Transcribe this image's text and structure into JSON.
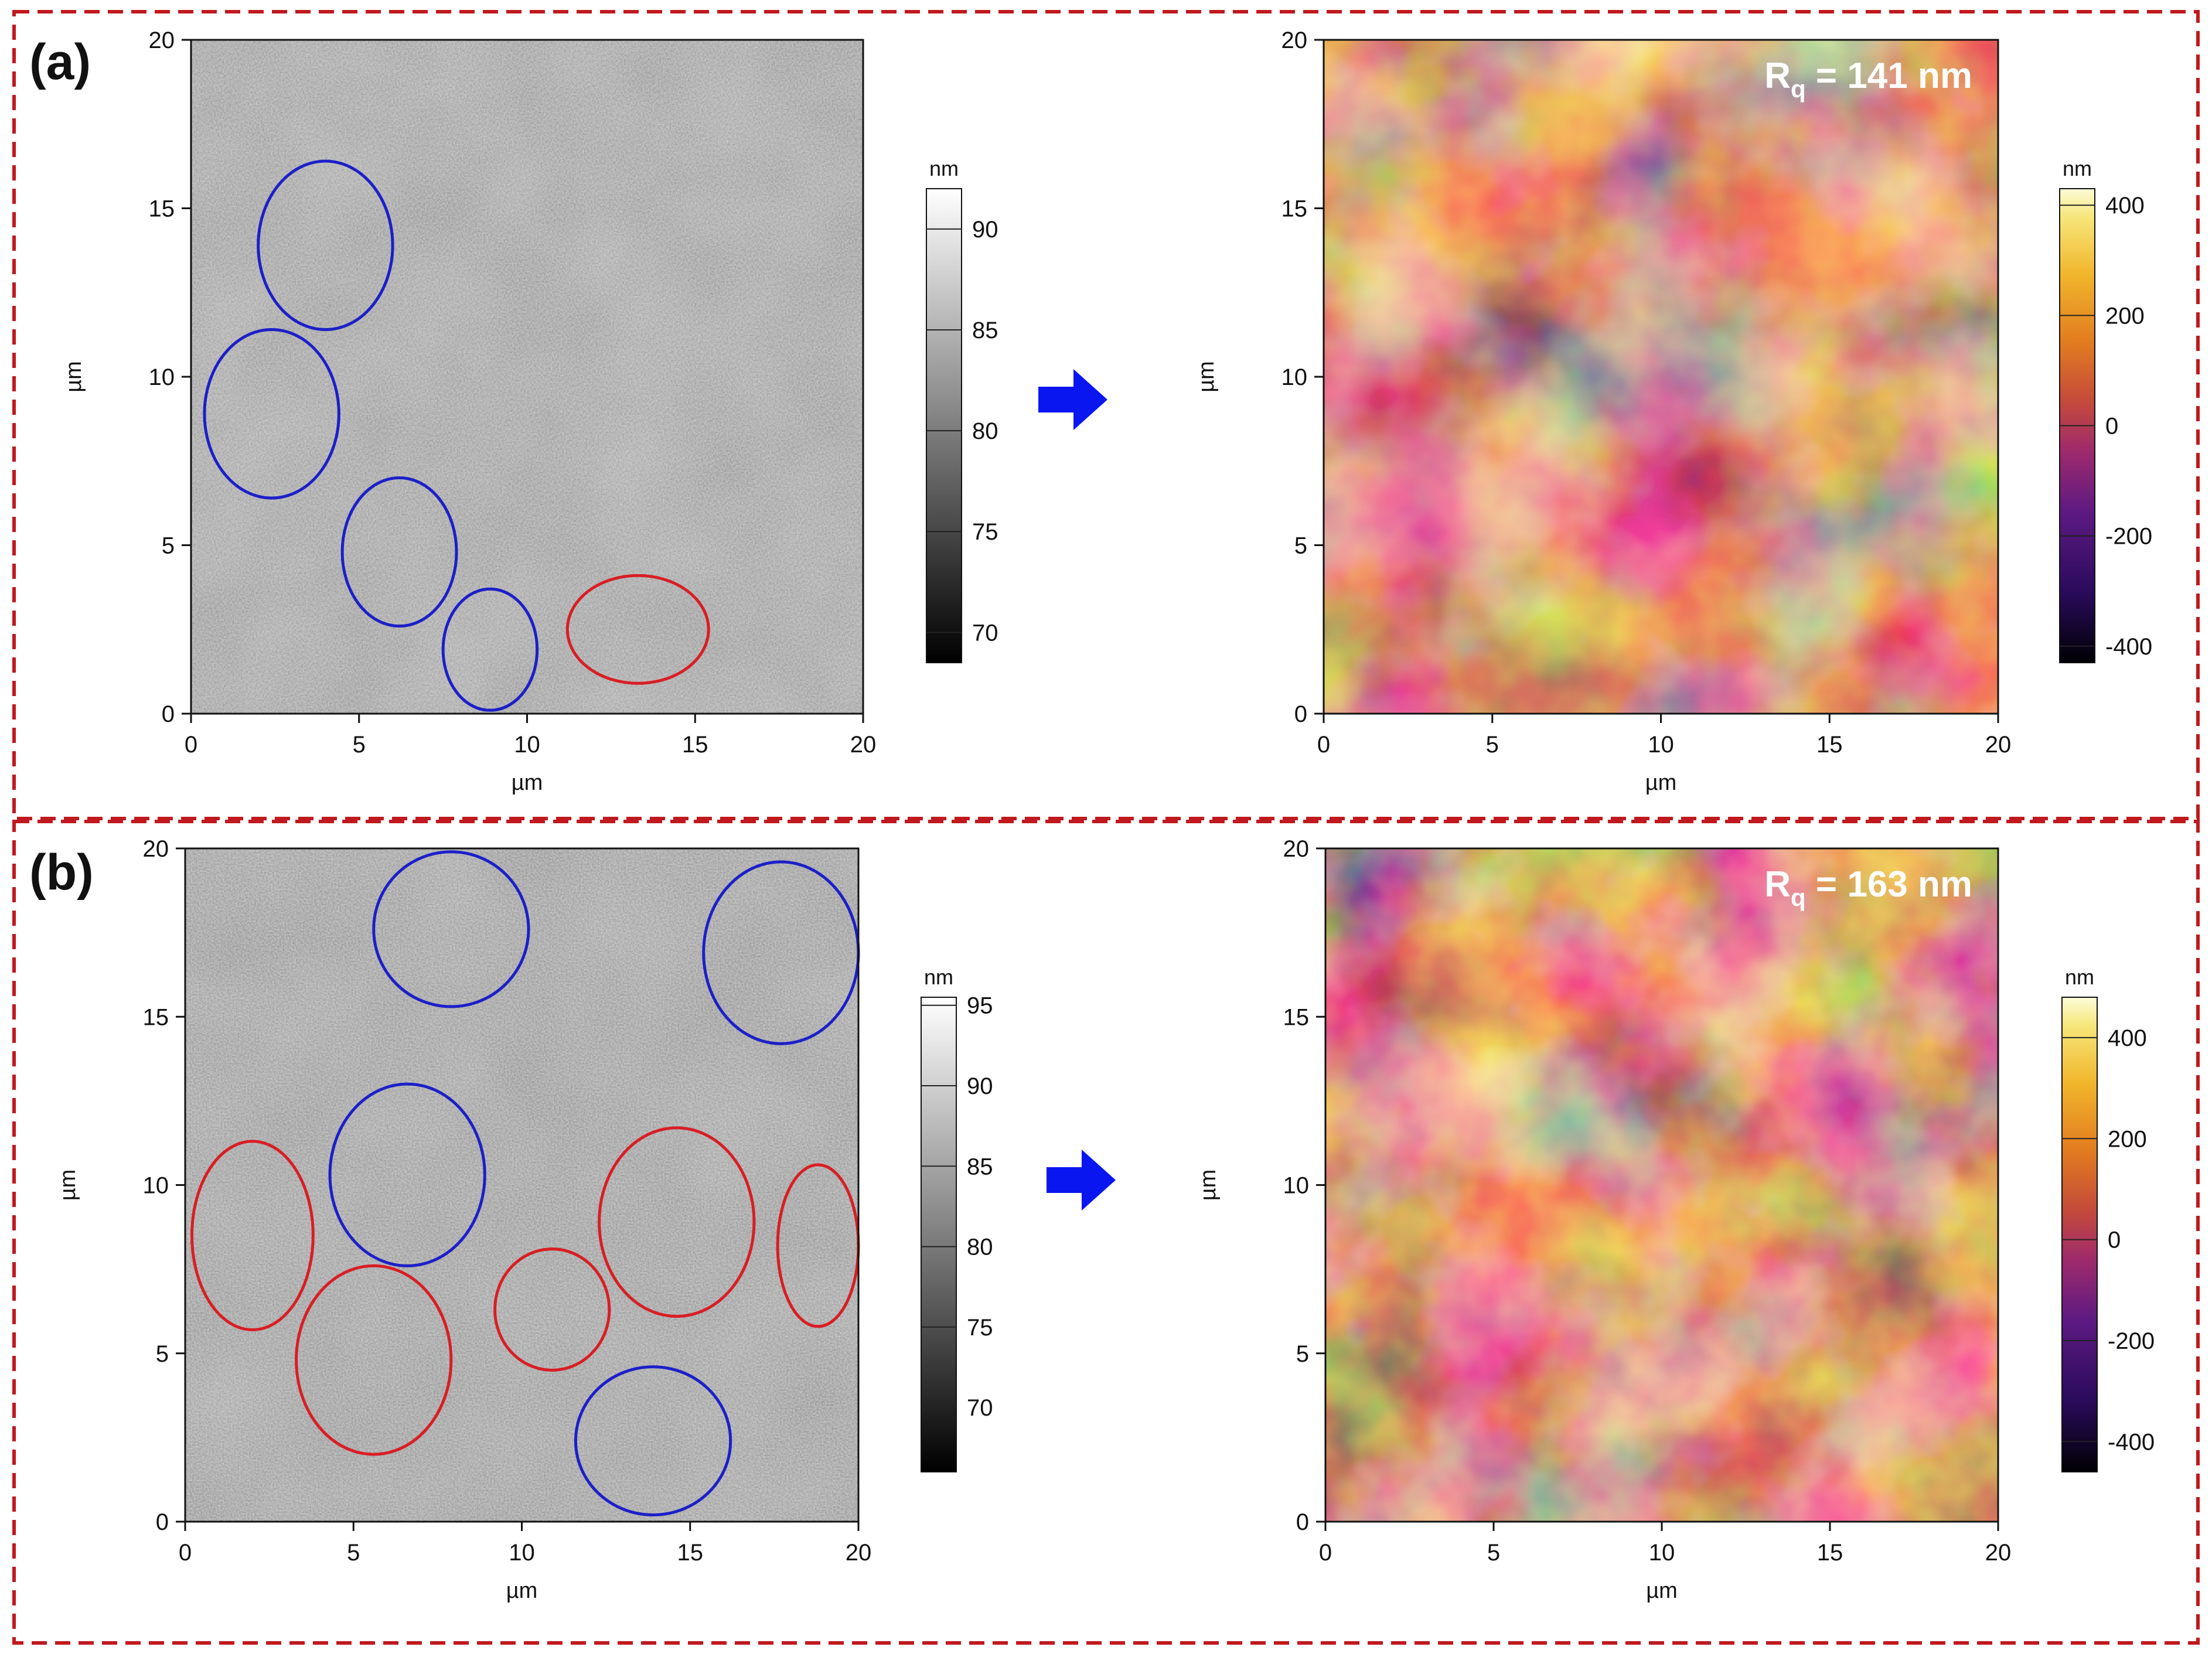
{
  "colors": {
    "frame_dash": "#c0191e",
    "arrow": "#0a16f0",
    "ellipse_blue": "#1c1fc8",
    "ellipse_red": "#d81e24",
    "rq_text": "#ffffff"
  },
  "panels": [
    {
      "label": "(a)",
      "left_image": {
        "type": "afm-amplitude-grayscale",
        "xlabel": "µm",
        "ylabel": "µm",
        "x_ticks": [
          "0",
          "5",
          "10",
          "15",
          "20"
        ],
        "y_ticks": [
          "0",
          "5",
          "10",
          "15",
          "20"
        ],
        "colorbar": {
          "unit": "nm",
          "ticks": [
            "70",
            "75",
            "80",
            "85",
            "90"
          ],
          "range": [
            68.5,
            92
          ],
          "colormap": "grayscale"
        },
        "ellipses": [
          {
            "color": "blue",
            "cx_um": 4.0,
            "cy_um": 13.9,
            "rx_um": 2.0,
            "ry_um": 2.5,
            "angle": 0
          },
          {
            "color": "blue",
            "cx_um": 2.4,
            "cy_um": 8.9,
            "rx_um": 2.0,
            "ry_um": 2.5,
            "angle": 0
          },
          {
            "color": "blue",
            "cx_um": 6.2,
            "cy_um": 4.8,
            "rx_um": 1.7,
            "ry_um": 2.2,
            "angle": 0
          },
          {
            "color": "blue",
            "cx_um": 8.9,
            "cy_um": 1.9,
            "rx_um": 1.4,
            "ry_um": 1.8,
            "angle": 0
          },
          {
            "color": "red",
            "cx_um": 13.3,
            "cy_um": 2.5,
            "rx_um": 2.1,
            "ry_um": 1.6,
            "angle": 0
          }
        ]
      },
      "right_image": {
        "type": "afm-height-inferno",
        "xlabel": "µm",
        "ylabel": "µm",
        "x_ticks": [
          "0",
          "5",
          "10",
          "15",
          "20"
        ],
        "y_ticks": [
          "0",
          "5",
          "10",
          "15",
          "20"
        ],
        "colorbar": {
          "unit": "nm",
          "ticks": [
            "-400",
            "-200",
            "0",
            "200",
            "400"
          ],
          "range": [
            -430,
            430
          ],
          "colormap": "inferno"
        },
        "rq_symbol": "R",
        "rq_subscript": "q",
        "rq_value": " = 141 nm"
      }
    },
    {
      "label": "(b)",
      "left_image": {
        "type": "afm-amplitude-grayscale",
        "xlabel": "µm",
        "ylabel": "µm",
        "x_ticks": [
          "0",
          "5",
          "10",
          "15",
          "20"
        ],
        "y_ticks": [
          "0",
          "5",
          "10",
          "15",
          "20"
        ],
        "colorbar": {
          "unit": "nm",
          "ticks": [
            "70",
            "75",
            "80",
            "85",
            "90",
            "95"
          ],
          "range": [
            66,
            95.5
          ],
          "colormap": "grayscale"
        },
        "ellipses": [
          {
            "color": "blue",
            "cx_um": 7.9,
            "cy_um": 17.6,
            "rx_um": 2.3,
            "ry_um": 2.3,
            "angle": 0
          },
          {
            "color": "blue",
            "cx_um": 17.7,
            "cy_um": 16.9,
            "rx_um": 2.3,
            "ry_um": 2.7,
            "angle": 0
          },
          {
            "color": "blue",
            "cx_um": 6.6,
            "cy_um": 10.3,
            "rx_um": 2.3,
            "ry_um": 2.7,
            "angle": 0
          },
          {
            "color": "blue",
            "cx_um": 13.9,
            "cy_um": 2.4,
            "rx_um": 2.3,
            "ry_um": 2.2,
            "angle": 0
          },
          {
            "color": "red",
            "cx_um": 2.0,
            "cy_um": 8.5,
            "rx_um": 1.8,
            "ry_um": 2.8,
            "angle": 0
          },
          {
            "color": "red",
            "cx_um": 5.6,
            "cy_um": 4.8,
            "rx_um": 2.3,
            "ry_um": 2.8,
            "angle": 0
          },
          {
            "color": "red",
            "cx_um": 10.9,
            "cy_um": 6.3,
            "rx_um": 1.7,
            "ry_um": 1.8,
            "angle": 0
          },
          {
            "color": "red",
            "cx_um": 14.6,
            "cy_um": 8.9,
            "rx_um": 2.3,
            "ry_um": 2.8,
            "angle": 0
          },
          {
            "color": "red",
            "cx_um": 18.8,
            "cy_um": 8.2,
            "rx_um": 1.2,
            "ry_um": 2.4,
            "angle": 0
          }
        ]
      },
      "right_image": {
        "type": "afm-height-inferno",
        "xlabel": "µm",
        "ylabel": "µm",
        "x_ticks": [
          "0",
          "5",
          "10",
          "15",
          "20"
        ],
        "y_ticks": [
          "0",
          "5",
          "10",
          "15",
          "20"
        ],
        "colorbar": {
          "unit": "nm",
          "ticks": [
            "-400",
            "-200",
            "0",
            "200",
            "400"
          ],
          "range": [
            -460,
            480
          ],
          "colormap": "inferno"
        },
        "rq_symbol": "R",
        "rq_subscript": "q",
        "rq_value": " = 163 nm"
      }
    }
  ]
}
